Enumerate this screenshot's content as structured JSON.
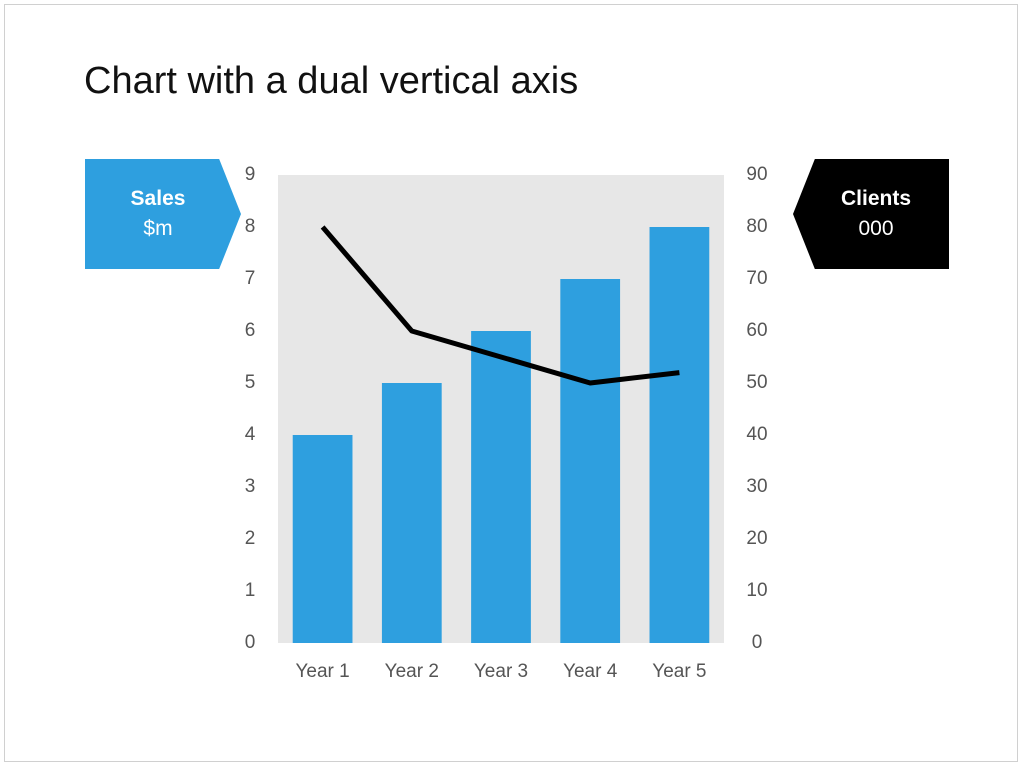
{
  "title": "Chart with a dual vertical axis",
  "left_callout": {
    "title": "Sales",
    "unit": "$m",
    "color": "#2e9fdf"
  },
  "right_callout": {
    "title": "Clients",
    "unit": "000",
    "color": "#000000"
  },
  "chart_data": {
    "type": "bar",
    "categories": [
      "Year 1",
      "Year 2",
      "Year 3",
      "Year 4",
      "Year 5"
    ],
    "series": [
      {
        "values": [
          4,
          5,
          6,
          7,
          8
        ],
        "type": "bar",
        "axis": "left",
        "color": "#2e9fdf"
      },
      {
        "values": [
          80,
          60,
          55,
          50,
          52
        ],
        "type": "line",
        "axis": "right",
        "color": "#000000"
      }
    ],
    "y_left": {
      "range": [
        0,
        9
      ],
      "ticks": [
        "0",
        "1",
        "2",
        "3",
        "4",
        "5",
        "6",
        "7",
        "8",
        "9"
      ]
    },
    "y_right": {
      "range": [
        0,
        90
      ],
      "ticks": [
        "0",
        "10",
        "20",
        "30",
        "40",
        "50",
        "60",
        "70",
        "80",
        "90"
      ]
    },
    "plot_background": "#e7e7e7",
    "grid": false,
    "legend": "none"
  }
}
